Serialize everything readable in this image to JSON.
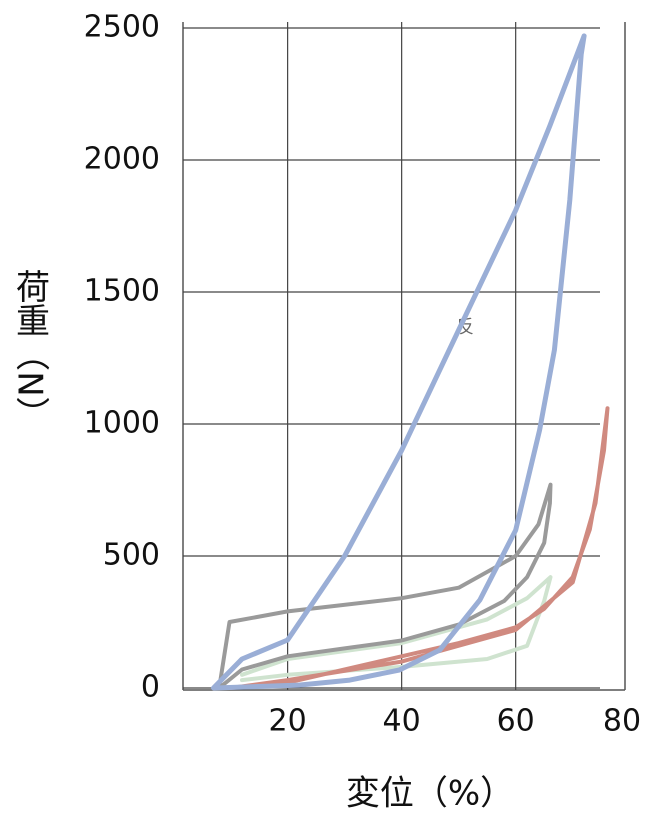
{
  "chart_data": {
    "type": "line",
    "x_label": "変位（%）",
    "y_label": "荷重（N）",
    "annotation": "反",
    "xlim": [
      2,
      79
    ],
    "ylim": [
      0,
      2500
    ],
    "xticks": [
      20,
      40,
      60,
      80
    ],
    "yticks": [
      0,
      500,
      1000,
      1500,
      2000,
      2500
    ],
    "grid": true,
    "series": [
      {
        "color": "#9aaed6",
        "x": [
          7,
          12,
          20,
          30,
          40,
          50,
          60,
          66,
          72,
          71.5,
          69.5,
          66.8,
          64.2,
          60,
          53.7,
          46.7,
          39.6,
          30.9,
          22,
          7.2
        ],
        "values": [
          0,
          110,
          182,
          500,
          900,
          1356,
          1810,
          2130,
          2470,
          2400,
          1848,
          1280,
          977,
          598,
          333,
          144,
          68,
          30,
          11,
          0
        ]
      },
      {
        "color": "#9a9a9a",
        "x": [
          8,
          9.8,
          20,
          40,
          50,
          60,
          64,
          66.1,
          66,
          65,
          62,
          58,
          50,
          40,
          30,
          20,
          12,
          8
        ],
        "values": [
          0,
          250,
          290,
          340,
          380,
          500,
          620,
          770,
          700,
          550,
          420,
          330,
          240,
          180,
          150,
          120,
          70,
          0
        ]
      },
      {
        "color": "#d08a80",
        "x": [
          10,
          20,
          40,
          60,
          70,
          74,
          76.1,
          75.5,
          73,
          70,
          65,
          60,
          50,
          40,
          30,
          20,
          10
        ],
        "values": [
          0,
          30,
          100,
          220,
          400,
          700,
          1060,
          900,
          600,
          420,
          300,
          230,
          170,
          120,
          70,
          20,
          0
        ]
      },
      {
        "color": "#cfe3cf",
        "x": [
          12,
          20,
          40,
          55,
          62,
          66.1,
          65,
          62,
          55,
          40,
          20,
          12
        ],
        "values": [
          50,
          110,
          170,
          260,
          340,
          420,
          330,
          160,
          110,
          80,
          50,
          30
        ]
      }
    ]
  }
}
